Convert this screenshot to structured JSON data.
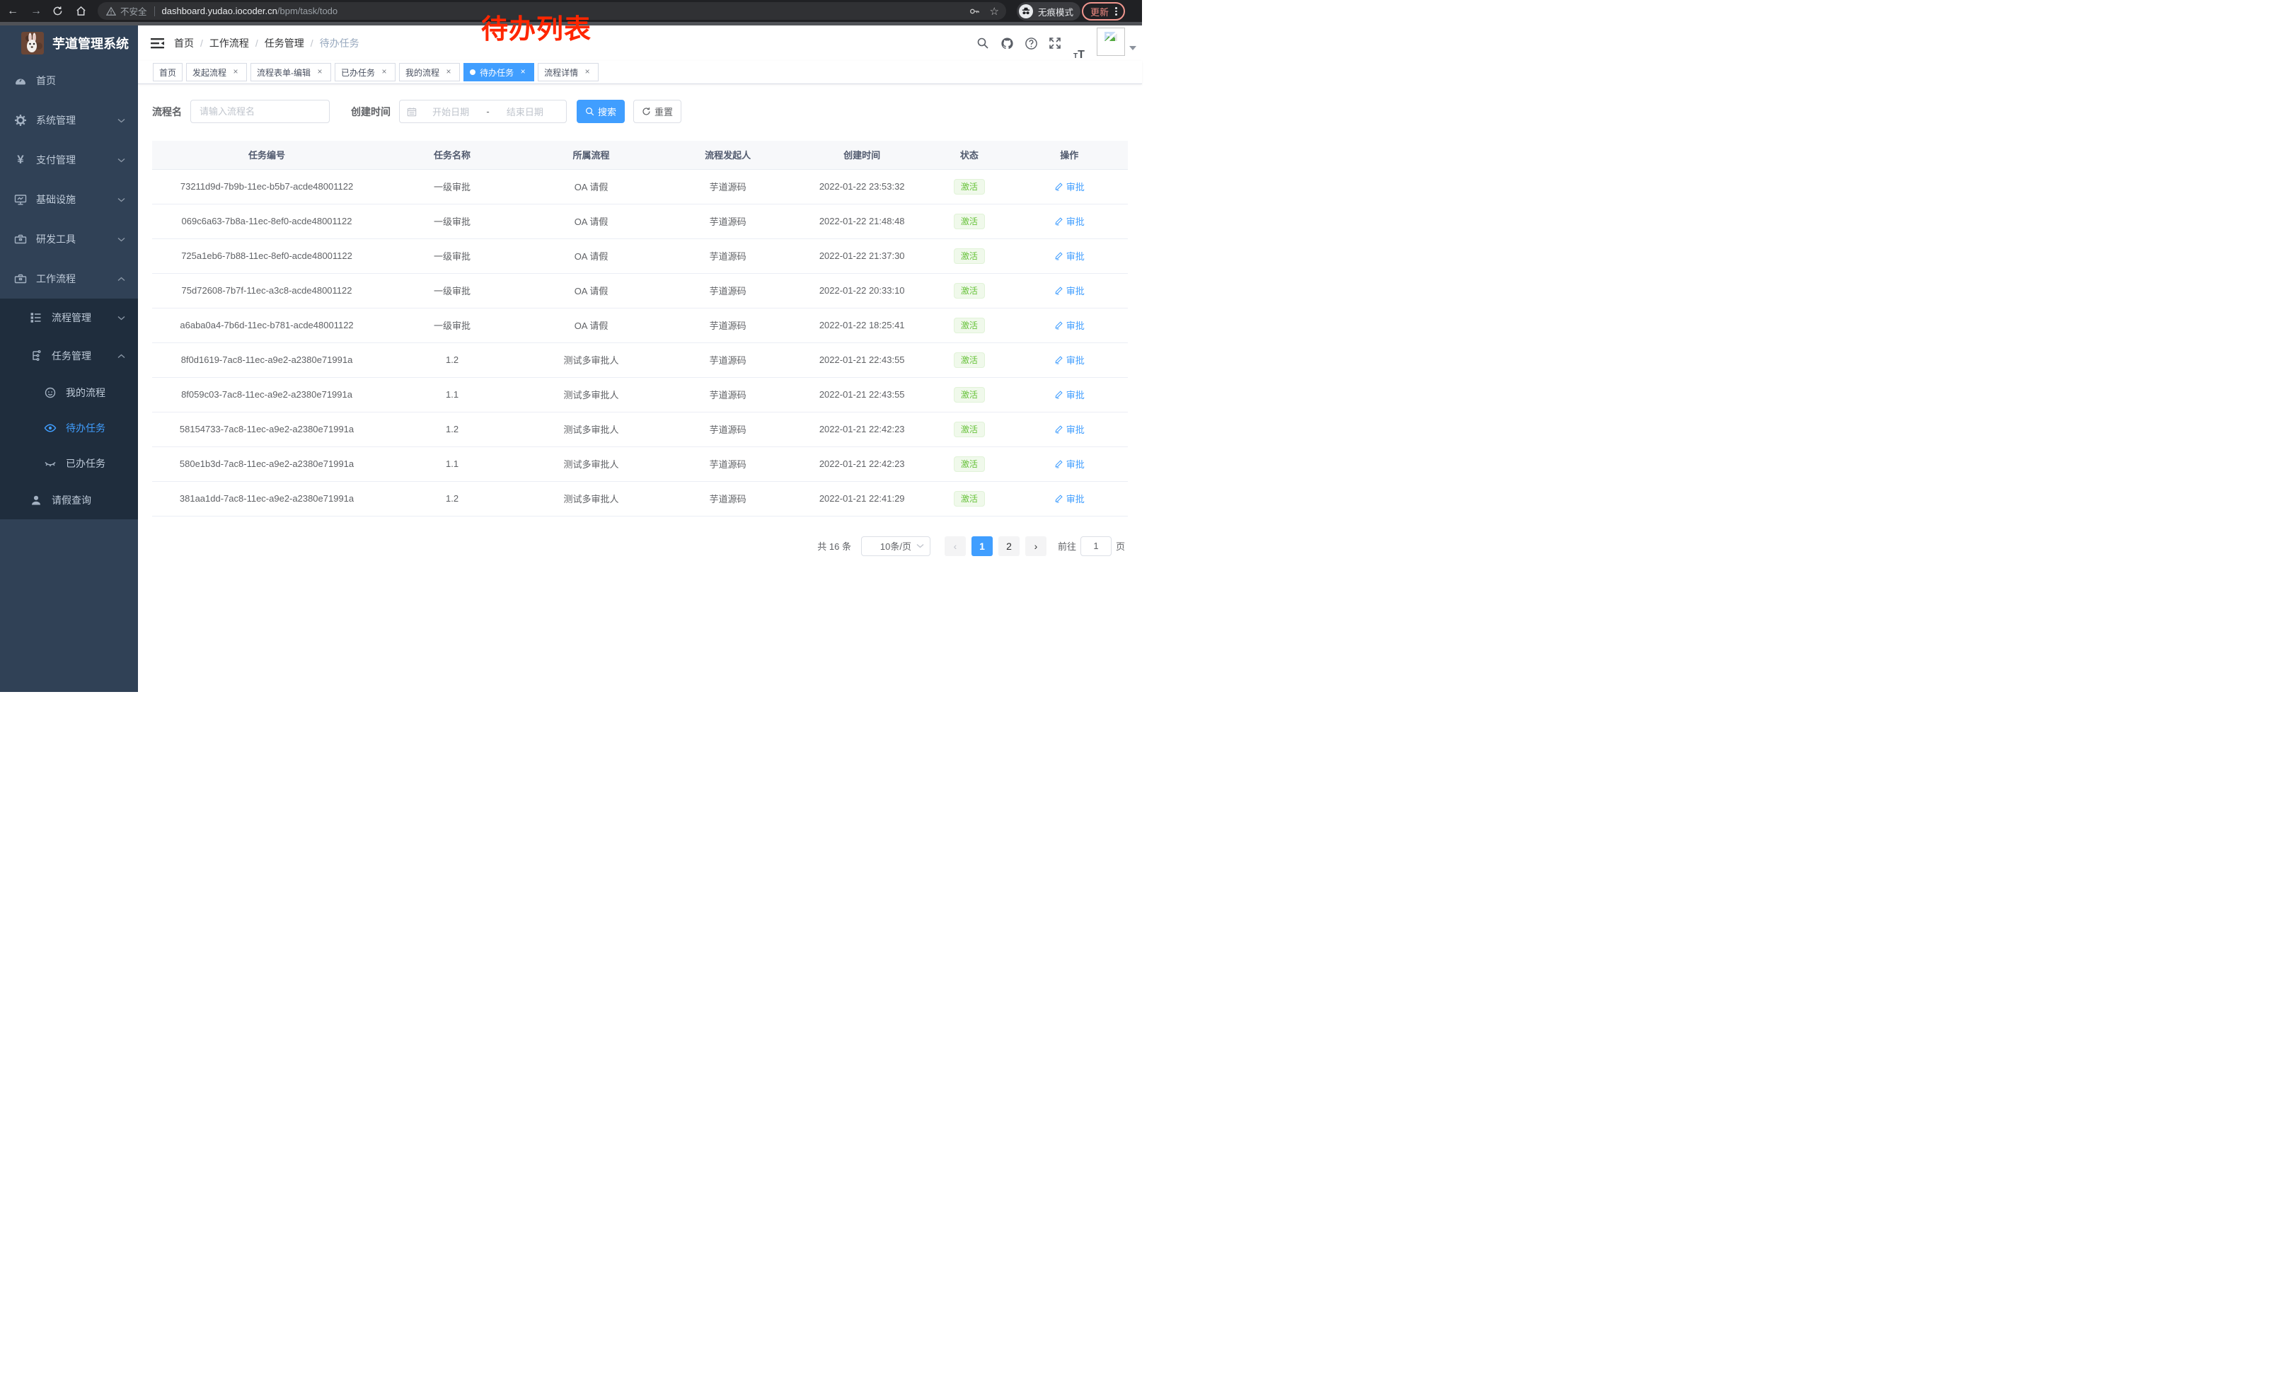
{
  "browser": {
    "security_label": "不安全",
    "url_host": "dashboard.yudao.iocoder.cn",
    "url_path": "/bpm/task/todo",
    "incognito_label": "无痕模式",
    "update_label": "更新"
  },
  "annotation": {
    "text": "待办列表",
    "color": "#ff2600"
  },
  "sidebar": {
    "title": "芋道管理系统",
    "home": "首页",
    "system": "系统管理",
    "pay": "支付管理",
    "infra": "基础设施",
    "dev": "研发工具",
    "workflow": "工作流程",
    "process_mgmt": "流程管理",
    "task_mgmt": "任务管理",
    "my_process": "我的流程",
    "todo_task": "待办任务",
    "done_task": "已办任务",
    "leave_query": "请假查询"
  },
  "header": {
    "breadcrumb": [
      "首页",
      "工作流程",
      "任务管理",
      "待办任务"
    ]
  },
  "tabs": [
    {
      "label": "首页"
    },
    {
      "label": "发起流程"
    },
    {
      "label": "流程表单-编辑"
    },
    {
      "label": "已办任务"
    },
    {
      "label": "我的流程"
    },
    {
      "label": "待办任务"
    },
    {
      "label": "流程详情"
    }
  ],
  "search": {
    "name_label": "流程名",
    "name_placeholder": "请输入流程名",
    "time_label": "创建时间",
    "start_placeholder": "开始日期",
    "separator": "-",
    "end_placeholder": "结束日期",
    "search_btn": "搜索",
    "reset_btn": "重置"
  },
  "table": {
    "headers": [
      "任务编号",
      "任务名称",
      "所属流程",
      "流程发起人",
      "创建时间",
      "状态",
      "操作"
    ],
    "rows": [
      {
        "id": "73211d9d-7b9b-11ec-b5b7-acde48001122",
        "name": "一级审批",
        "process": "OA 请假",
        "starter": "芋道源码",
        "time": "2022-01-22 23:53:32",
        "status": "激活",
        "action": "审批"
      },
      {
        "id": "069c6a63-7b8a-11ec-8ef0-acde48001122",
        "name": "一级审批",
        "process": "OA 请假",
        "starter": "芋道源码",
        "time": "2022-01-22 21:48:48",
        "status": "激活",
        "action": "审批"
      },
      {
        "id": "725a1eb6-7b88-11ec-8ef0-acde48001122",
        "name": "一级审批",
        "process": "OA 请假",
        "starter": "芋道源码",
        "time": "2022-01-22 21:37:30",
        "status": "激活",
        "action": "审批"
      },
      {
        "id": "75d72608-7b7f-11ec-a3c8-acde48001122",
        "name": "一级审批",
        "process": "OA 请假",
        "starter": "芋道源码",
        "time": "2022-01-22 20:33:10",
        "status": "激活",
        "action": "审批"
      },
      {
        "id": "a6aba0a4-7b6d-11ec-b781-acde48001122",
        "name": "一级审批",
        "process": "OA 请假",
        "starter": "芋道源码",
        "time": "2022-01-22 18:25:41",
        "status": "激活",
        "action": "审批"
      },
      {
        "id": "8f0d1619-7ac8-11ec-a9e2-a2380e71991a",
        "name": "1.2",
        "process": "测试多审批人",
        "starter": "芋道源码",
        "time": "2022-01-21 22:43:55",
        "status": "激活",
        "action": "审批"
      },
      {
        "id": "8f059c03-7ac8-11ec-a9e2-a2380e71991a",
        "name": "1.1",
        "process": "测试多审批人",
        "starter": "芋道源码",
        "time": "2022-01-21 22:43:55",
        "status": "激活",
        "action": "审批"
      },
      {
        "id": "58154733-7ac8-11ec-a9e2-a2380e71991a",
        "name": "1.2",
        "process": "测试多审批人",
        "starter": "芋道源码",
        "time": "2022-01-21 22:42:23",
        "status": "激活",
        "action": "审批"
      },
      {
        "id": "580e1b3d-7ac8-11ec-a9e2-a2380e71991a",
        "name": "1.1",
        "process": "测试多审批人",
        "starter": "芋道源码",
        "time": "2022-01-21 22:42:23",
        "status": "激活",
        "action": "审批"
      },
      {
        "id": "381aa1dd-7ac8-11ec-a9e2-a2380e71991a",
        "name": "1.2",
        "process": "测试多审批人",
        "starter": "芋道源码",
        "time": "2022-01-21 22:41:29",
        "status": "激活",
        "action": "审批"
      }
    ]
  },
  "pagination": {
    "total": "共 16 条",
    "size": "10条/页",
    "pages": [
      "1",
      "2"
    ],
    "goto_label": "前往",
    "goto_value": "1",
    "page_unit": "页"
  },
  "colors": {
    "accent": "#409eff",
    "success": "#67c23a",
    "sidebar_bg": "#304156",
    "submenu_bg": "#1f2d3d",
    "tag_bg": "#f0f9eb"
  }
}
